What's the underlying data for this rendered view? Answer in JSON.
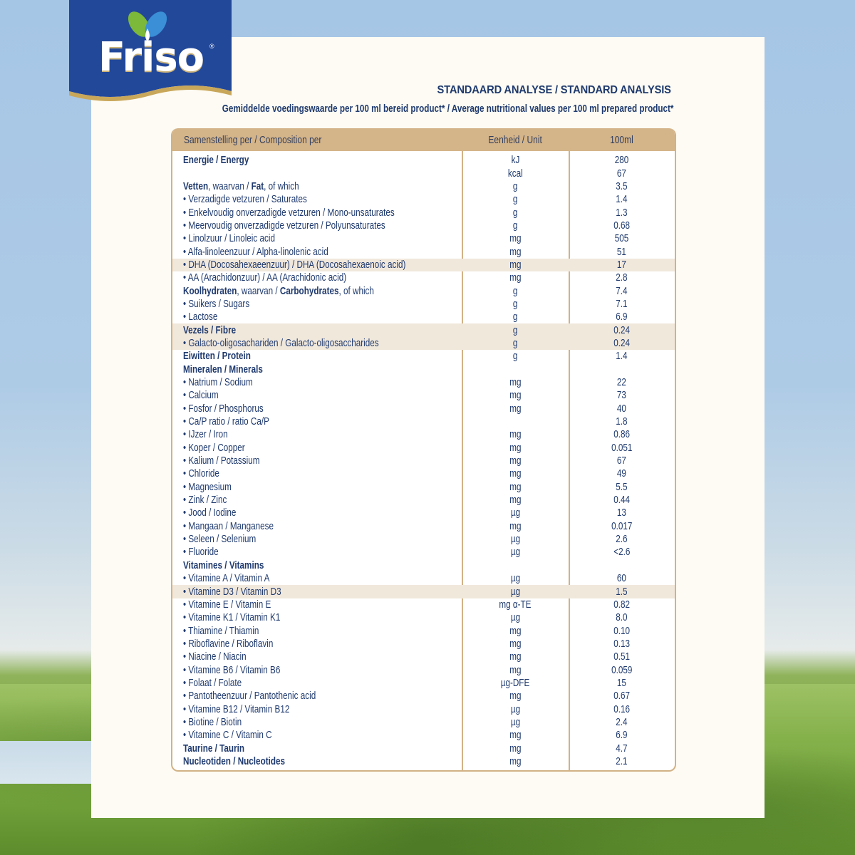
{
  "brand": {
    "name": "Friso",
    "registered_mark": "®",
    "banner_color": "#22489a",
    "accent_gold": "#c9a75a"
  },
  "heading": "STANDAARD ANALYSE / STANDARD ANALYSIS",
  "subheading": "Gemiddelde voedingswaarde per 100 ml bereid product* / Average nutritional values per 100 ml prepared product*",
  "table": {
    "header_color": "#d4b489",
    "columns": [
      "Samenstelling per / Composition per",
      "Eenheid / Unit",
      "100ml"
    ],
    "rows": [
      {
        "label": "Energie / Energy",
        "type": "head",
        "unit": "kJ",
        "value": "280"
      },
      {
        "label": "",
        "type": "cont",
        "unit": "kcal",
        "value": "67"
      },
      {
        "label_bold_1": "Vetten",
        "label_mid": ", waarvan / ",
        "label_bold_2": "Fat",
        "label_end": ", of which",
        "type": "mixed",
        "unit": "g",
        "value": "3.5"
      },
      {
        "label": "• Verzadigde vetzuren / Saturates",
        "type": "sub",
        "unit": "g",
        "value": "1.4"
      },
      {
        "label": "• Enkelvoudig onverzadigde vetzuren / Mono-unsaturates",
        "type": "sub",
        "unit": "g",
        "value": "1.3"
      },
      {
        "label": "• Meervoudig onverzadigde vetzuren / Polyunsaturates",
        "type": "sub",
        "unit": "g",
        "value": "0.68"
      },
      {
        "label": "• Linolzuur / Linoleic acid",
        "type": "sub",
        "unit": "mg",
        "value": "505"
      },
      {
        "label": "• Alfa-linoleenzuur / Alpha-linolenic acid",
        "type": "sub",
        "unit": "mg",
        "value": "51"
      },
      {
        "label": "• DHA (Docosahexaeenzuur) / DHA (Docosahexaenoic acid)",
        "type": "sub",
        "shaded": true,
        "unit": "mg",
        "value": "17"
      },
      {
        "label": "• AA (Arachidonzuur) / AA (Arachidonic acid)",
        "type": "sub",
        "unit": "mg",
        "value": "2.8"
      },
      {
        "label_bold_1": "Koolhydraten",
        "label_mid": ", waarvan / ",
        "label_bold_2": "Carbohydrates",
        "label_end": ", of which",
        "type": "mixed",
        "unit": "g",
        "value": "7.4"
      },
      {
        "label": "• Suikers / Sugars",
        "type": "sub",
        "unit": "g",
        "value": "7.1"
      },
      {
        "label": "• Lactose",
        "type": "sub",
        "unit": "g",
        "value": "6.9"
      },
      {
        "label": "Vezels / Fibre",
        "type": "head",
        "shaded": true,
        "unit": "g",
        "value": "0.24"
      },
      {
        "label": "• Galacto-oligosachariden / Galacto-oligosaccharides",
        "type": "sub",
        "shaded": true,
        "unit": "g",
        "value": "0.24"
      },
      {
        "label": "Eiwitten / Protein",
        "type": "head",
        "unit": "g",
        "value": "1.4"
      },
      {
        "label": "Mineralen / Minerals",
        "type": "head",
        "unit": "",
        "value": ""
      },
      {
        "label": "• Natrium / Sodium",
        "type": "sub",
        "unit": "mg",
        "value": "22"
      },
      {
        "label": "• Calcium",
        "type": "sub",
        "unit": "mg",
        "value": "73"
      },
      {
        "label": "• Fosfor / Phosphorus",
        "type": "sub",
        "unit": "mg",
        "value": "40"
      },
      {
        "label": "• Ca/P ratio / ratio Ca/P",
        "type": "sub",
        "unit": "",
        "value": "1.8"
      },
      {
        "label": "• IJzer / Iron",
        "type": "sub",
        "unit": "mg",
        "value": "0.86"
      },
      {
        "label": "• Koper / Copper",
        "type": "sub",
        "unit": "mg",
        "value": "0.051"
      },
      {
        "label": "• Kalium / Potassium",
        "type": "sub",
        "unit": "mg",
        "value": "67"
      },
      {
        "label": "• Chloride",
        "type": "sub",
        "unit": "mg",
        "value": "49"
      },
      {
        "label": "• Magnesium",
        "type": "sub",
        "unit": "mg",
        "value": "5.5"
      },
      {
        "label": "• Zink / Zinc",
        "type": "sub",
        "unit": "mg",
        "value": "0.44"
      },
      {
        "label": "• Jood / Iodine",
        "type": "sub",
        "unit": "µg",
        "value": "13"
      },
      {
        "label": "• Mangaan / Manganese",
        "type": "sub",
        "unit": "mg",
        "value": "0.017"
      },
      {
        "label": "• Seleen / Selenium",
        "type": "sub",
        "unit": "µg",
        "value": "2.6"
      },
      {
        "label": "• Fluoride",
        "type": "sub",
        "unit": "µg",
        "value": "<2.6"
      },
      {
        "label": "Vitamines / Vitamins",
        "type": "head",
        "unit": "",
        "value": ""
      },
      {
        "label": "• Vitamine A / Vitamin A",
        "type": "sub",
        "unit": "µg",
        "value": "60"
      },
      {
        "label": "• Vitamine D3 / Vitamin D3",
        "type": "sub",
        "shaded": true,
        "unit": "µg",
        "value": "1.5"
      },
      {
        "label": "• Vitamine E / Vitamin E",
        "type": "sub",
        "unit": "mg α-TE",
        "value": "0.82"
      },
      {
        "label": "• Vitamine K1 / Vitamin K1",
        "type": "sub",
        "unit": "µg",
        "value": "8.0"
      },
      {
        "label": "• Thiamine / Thiamin",
        "type": "sub",
        "unit": "mg",
        "value": "0.10"
      },
      {
        "label": "• Riboflavine / Riboflavin",
        "type": "sub",
        "unit": "mg",
        "value": "0.13"
      },
      {
        "label": "• Niacine / Niacin",
        "type": "sub",
        "unit": "mg",
        "value": "0.51"
      },
      {
        "label": "• Vitamine B6 / Vitamin B6",
        "type": "sub",
        "unit": "mg",
        "value": "0.059"
      },
      {
        "label": "• Folaat / Folate",
        "type": "sub",
        "unit": "µg-DFE",
        "value": "15"
      },
      {
        "label": "• Pantotheenzuur / Pantothenic acid",
        "type": "sub",
        "unit": "mg",
        "value": "0.67"
      },
      {
        "label": "• Vitamine B12 / Vitamin B12",
        "type": "sub",
        "unit": "µg",
        "value": "0.16"
      },
      {
        "label": "• Biotine / Biotin",
        "type": "sub",
        "unit": "µg",
        "value": "2.4"
      },
      {
        "label": "• Vitamine C / Vitamin C",
        "type": "sub",
        "unit": "mg",
        "value": "6.9"
      },
      {
        "label": "Taurine / Taurin",
        "type": "head",
        "unit": "mg",
        "value": "4.7"
      },
      {
        "label": "Nucleotiden / Nucleotides",
        "type": "head",
        "unit": "mg",
        "value": "2.1"
      }
    ]
  }
}
